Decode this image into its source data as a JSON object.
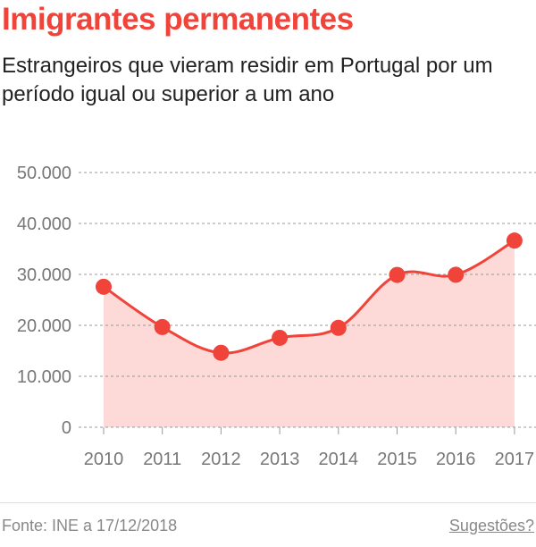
{
  "title": "Imigrantes permanentes",
  "subtitle": "Estrangeiros que vieram residir em Portugal por um período igual ou superior a um ano",
  "footer": {
    "source": "Fonte: INE a 17/12/2018",
    "suggestions": "Sugestões?"
  },
  "chart_data": {
    "type": "area",
    "categories": [
      "2010",
      "2011",
      "2012",
      "2013",
      "2014",
      "2015",
      "2016",
      "2017"
    ],
    "values": [
      27575,
      19667,
      14606,
      17554,
      19516,
      29896,
      29925,
      36639
    ],
    "ylim": [
      0,
      50000
    ],
    "yticks": [
      0,
      10000,
      20000,
      30000,
      40000,
      50000
    ],
    "ytick_labels": [
      "0",
      "10.000",
      "20.000",
      "30.000",
      "40.000",
      "50.000"
    ],
    "grid": true,
    "colors": {
      "line": "#f0433a",
      "fill": "#fdd9d7",
      "grid": "#999999"
    }
  }
}
